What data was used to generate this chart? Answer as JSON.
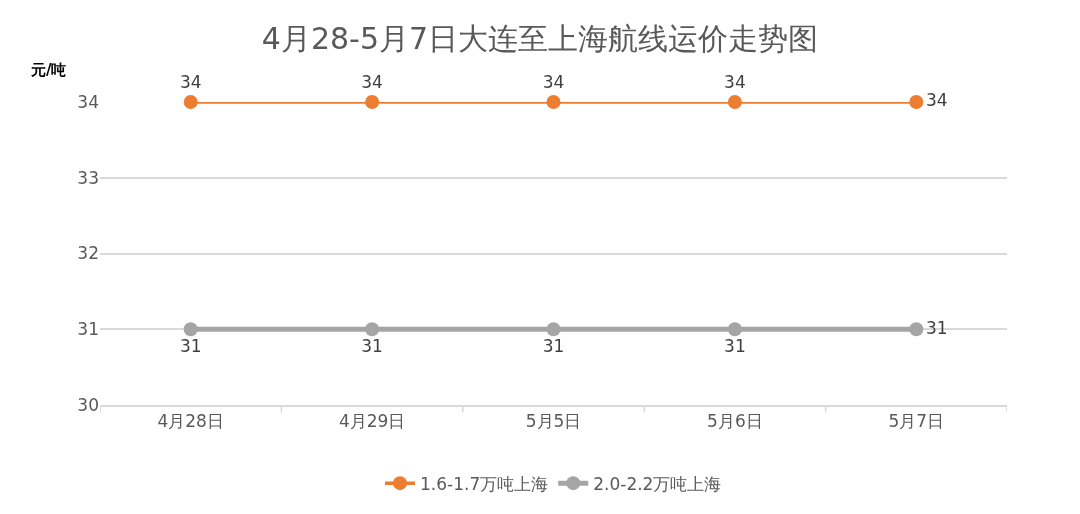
{
  "chart_data": {
    "type": "line",
    "title": "4月28-5月7日大连至上海航线运价走势图",
    "ylabel": "元/吨",
    "categories": [
      "4月28日",
      "4月29日",
      "5月5日",
      "5月6日",
      "5月7日"
    ],
    "series": [
      {
        "name": "1.6-1.7万吨上海",
        "color": "#ed7d31",
        "values": [
          34,
          34,
          34,
          34,
          34
        ]
      },
      {
        "name": "2.0-2.2万吨上海",
        "color": "#a5a5a5",
        "values": [
          31,
          31,
          31,
          31,
          31
        ]
      }
    ],
    "ylim": [
      30,
      34
    ],
    "yticks": [
      30,
      31,
      32,
      33,
      34
    ],
    "grid": "y",
    "legend": "bottom",
    "marker": "circle",
    "line_style": "solid",
    "data_labels": true
  }
}
